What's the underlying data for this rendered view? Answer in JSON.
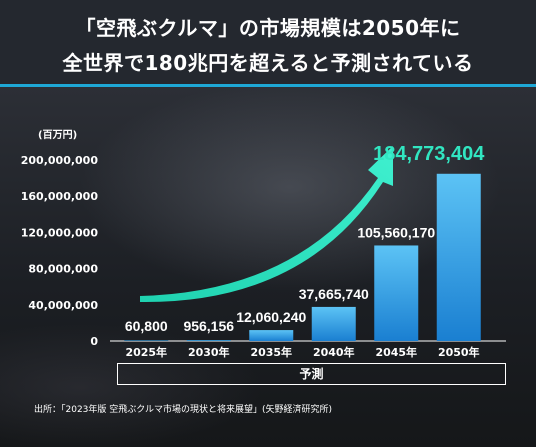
{
  "title": {
    "line1": "「空飛ぶクルマ」の市場規模は2050年に",
    "line2": "全世界で180兆円を超えると予測されている"
  },
  "colors": {
    "header_bg": "#24282f",
    "accent_line": "#1ea8d6",
    "bar_top": "#5cc3f5",
    "bar_bottom": "#1a7fd1",
    "highlight_label": "#31e6c1",
    "arrow": "#31e6c1"
  },
  "chart_data": {
    "type": "bar",
    "unit_label": "(百万円)",
    "categories": [
      "2025年",
      "2030年",
      "2035年",
      "2040年",
      "2045年",
      "2050年"
    ],
    "values": [
      60800,
      956156,
      12060240,
      37665740,
      105560170,
      184773404
    ],
    "value_labels": [
      "60,800",
      "956,156",
      "12,060,240",
      "37,665,740",
      "105,560,170",
      "184,773,404"
    ],
    "highlight_index": 5,
    "yticks": [
      0,
      40000000,
      80000000,
      120000000,
      160000000,
      200000000
    ],
    "ytick_labels": [
      "0",
      "40,000,000",
      "80,000,000",
      "120,000,000",
      "160,000,000",
      "200,000,000"
    ],
    "ylim": [
      0,
      200000000
    ],
    "grid": false,
    "annotation": "growth-arrow"
  },
  "forecast_label": "予測",
  "source": "出所：「2023年版 空飛ぶクルマ市場の現状と将来展望」(矢野経済研究所)"
}
